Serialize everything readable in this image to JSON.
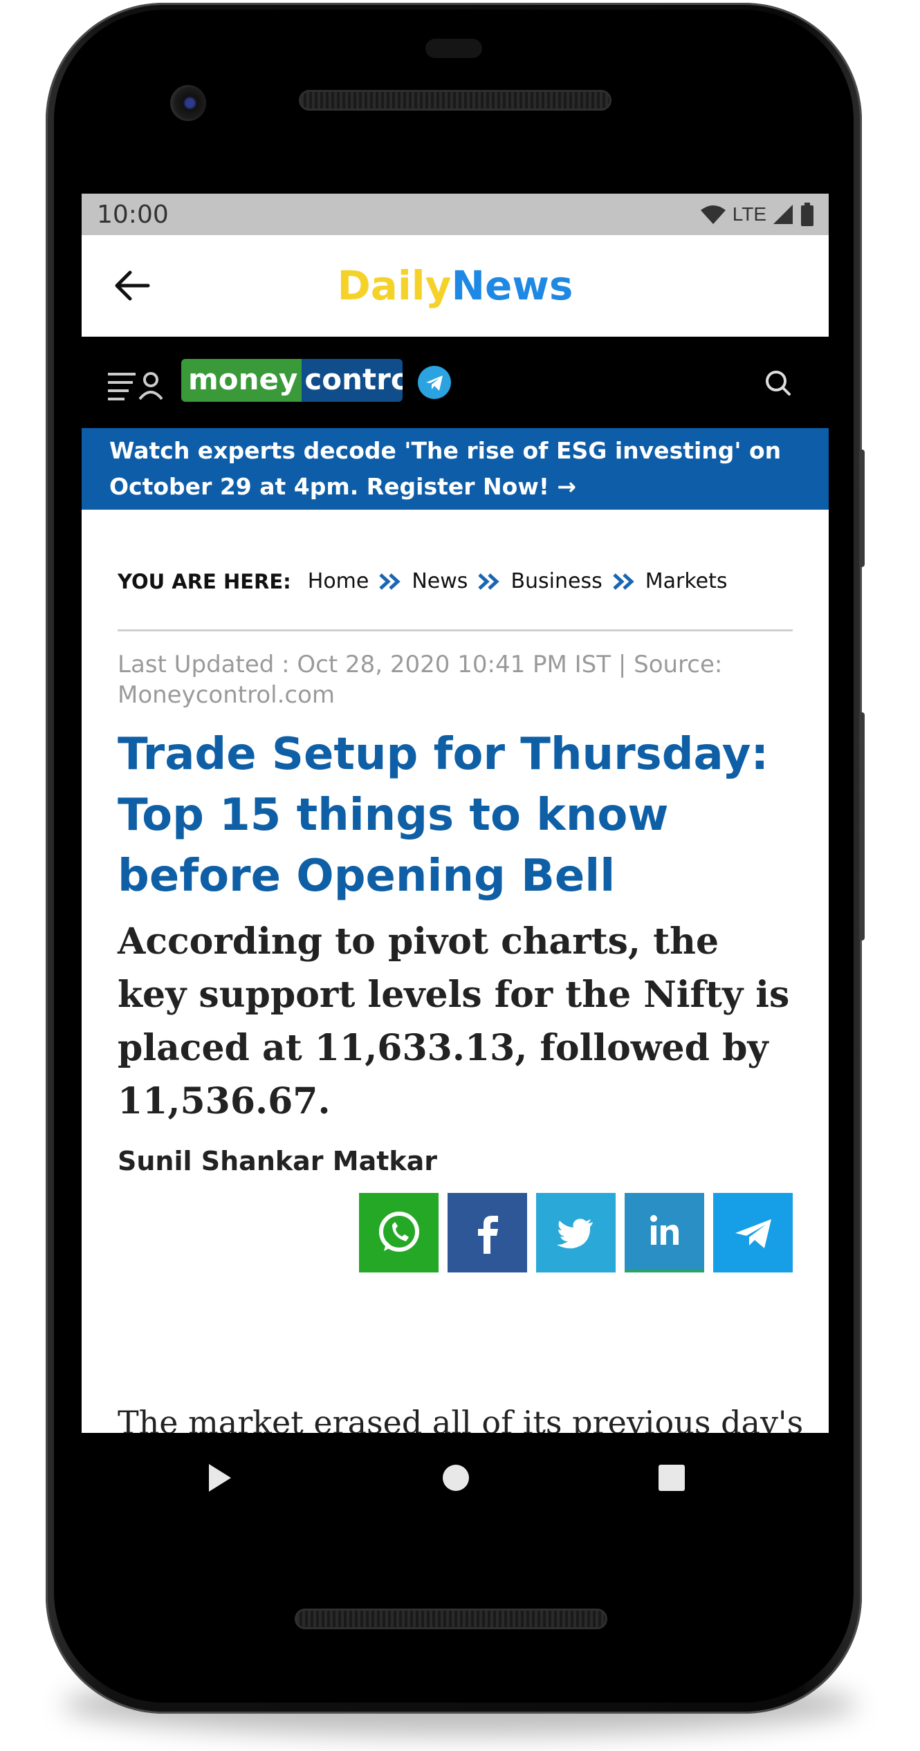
{
  "status_bar": {
    "time": "10:00",
    "network": "LTE"
  },
  "app_bar": {
    "brand_part1": "Daily",
    "brand_part2": "News",
    "brand_color1": "#f5d22a",
    "brand_color2": "#1e88e5"
  },
  "site_header": {
    "logo_part1": "money",
    "logo_part2": "control"
  },
  "promo": {
    "text": "Watch experts decode 'The rise of ESG investing' on October 29 at 4pm. Register Now! →"
  },
  "breadcrumb": {
    "label": "YOU ARE HERE:",
    "items": [
      "Home",
      "News",
      "Business",
      "Markets"
    ]
  },
  "article": {
    "updated": "Last Updated : Oct 28, 2020 10:41 PM IST | Source: Moneycontrol.com",
    "headline": "Trade Setup for Thursday: Top 15 things to know before Opening Bell",
    "subheadline": "According to pivot charts, the key support levels for the Nifty is placed at 11,633.13, followed by 11,536.67.",
    "author": "Sunil Shankar Matkar",
    "body_start": "The market erased all of its previous day's"
  },
  "share_buttons": [
    {
      "icon": "whatsapp-icon",
      "color": "#25a826"
    },
    {
      "icon": "facebook-icon",
      "color": "#2d5797"
    },
    {
      "icon": "twitter-icon",
      "color": "#2aa8d8"
    },
    {
      "icon": "linkedin-icon",
      "color": "#2a8fc4"
    },
    {
      "icon": "telegram-icon",
      "color": "#169fe6"
    }
  ]
}
